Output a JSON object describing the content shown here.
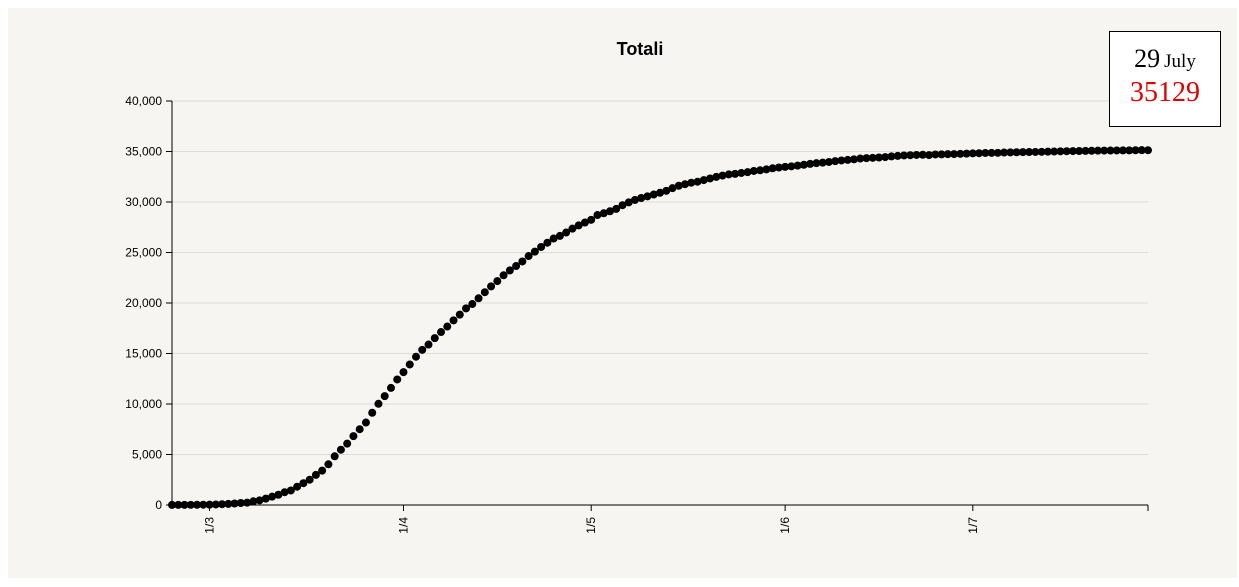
{
  "colors": {
    "background": "#f7f5f1",
    "marker": "#000000",
    "grid": "#dcdcdc",
    "axis": "#000000",
    "annotation_value": "#e00000"
  },
  "annotation": {
    "day": "29",
    "month": "July",
    "value": "35129"
  },
  "chart_data": {
    "type": "scatter",
    "title": "Totali",
    "xlabel": "",
    "ylabel": "",
    "x_range": [
      "2020-02-24",
      "2020-07-29"
    ],
    "x_ticks": [
      {
        "date": "2020-03-01",
        "label": "1/3"
      },
      {
        "date": "2020-04-01",
        "label": "1/4"
      },
      {
        "date": "2020-05-01",
        "label": "1/5"
      },
      {
        "date": "2020-06-01",
        "label": "1/6"
      },
      {
        "date": "2020-07-01",
        "label": "1/7"
      }
    ],
    "ylim": [
      0,
      40000
    ],
    "y_ticks": [
      {
        "value": 0,
        "label": "0"
      },
      {
        "value": 5000,
        "label": "5,000"
      },
      {
        "value": 10000,
        "label": "10,000"
      },
      {
        "value": 15000,
        "label": "15,000"
      },
      {
        "value": 20000,
        "label": "20,000"
      },
      {
        "value": 25000,
        "label": "25,000"
      },
      {
        "value": 30000,
        "label": "30,000"
      },
      {
        "value": 35000,
        "label": "35,000"
      },
      {
        "value": 40000,
        "label": "40,000"
      }
    ],
    "grid": true,
    "legend": "none",
    "series": [
      {
        "points": [
          [
            "2020-02-24",
            7
          ],
          [
            "2020-02-25",
            10
          ],
          [
            "2020-02-26",
            12
          ],
          [
            "2020-02-27",
            17
          ],
          [
            "2020-02-28",
            21
          ],
          [
            "2020-02-29",
            29
          ],
          [
            "2020-03-01",
            34
          ],
          [
            "2020-03-02",
            52
          ],
          [
            "2020-03-03",
            79
          ],
          [
            "2020-03-04",
            107
          ],
          [
            "2020-03-05",
            148
          ],
          [
            "2020-03-06",
            197
          ],
          [
            "2020-03-07",
            233
          ],
          [
            "2020-03-08",
            366
          ],
          [
            "2020-03-09",
            463
          ],
          [
            "2020-03-10",
            631
          ],
          [
            "2020-03-11",
            827
          ],
          [
            "2020-03-12",
            1016
          ],
          [
            "2020-03-13",
            1266
          ],
          [
            "2020-03-14",
            1441
          ],
          [
            "2020-03-15",
            1809
          ],
          [
            "2020-03-16",
            2158
          ],
          [
            "2020-03-17",
            2503
          ],
          [
            "2020-03-18",
            2978
          ],
          [
            "2020-03-19",
            3405
          ],
          [
            "2020-03-20",
            4032
          ],
          [
            "2020-03-21",
            4825
          ],
          [
            "2020-03-22",
            5476
          ],
          [
            "2020-03-23",
            6077
          ],
          [
            "2020-03-24",
            6820
          ],
          [
            "2020-03-25",
            7503
          ],
          [
            "2020-03-26",
            8165
          ],
          [
            "2020-03-27",
            9134
          ],
          [
            "2020-03-28",
            10023
          ],
          [
            "2020-03-29",
            10779
          ],
          [
            "2020-03-30",
            11591
          ],
          [
            "2020-03-31",
            12428
          ],
          [
            "2020-04-01",
            13155
          ],
          [
            "2020-04-02",
            13915
          ],
          [
            "2020-04-03",
            14681
          ],
          [
            "2020-04-04",
            15362
          ],
          [
            "2020-04-05",
            15887
          ],
          [
            "2020-04-06",
            16523
          ],
          [
            "2020-04-07",
            17127
          ],
          [
            "2020-04-08",
            17669
          ],
          [
            "2020-04-09",
            18279
          ],
          [
            "2020-04-10",
            18849
          ],
          [
            "2020-04-11",
            19468
          ],
          [
            "2020-04-12",
            19899
          ],
          [
            "2020-04-13",
            20465
          ],
          [
            "2020-04-14",
            21067
          ],
          [
            "2020-04-15",
            21645
          ],
          [
            "2020-04-16",
            22170
          ],
          [
            "2020-04-17",
            22745
          ],
          [
            "2020-04-18",
            23227
          ],
          [
            "2020-04-19",
            23660
          ],
          [
            "2020-04-20",
            24114
          ],
          [
            "2020-04-21",
            24648
          ],
          [
            "2020-04-22",
            25085
          ],
          [
            "2020-04-23",
            25549
          ],
          [
            "2020-04-24",
            25969
          ],
          [
            "2020-04-25",
            26384
          ],
          [
            "2020-04-26",
            26644
          ],
          [
            "2020-04-27",
            26977
          ],
          [
            "2020-04-28",
            27359
          ],
          [
            "2020-04-29",
            27682
          ],
          [
            "2020-04-30",
            27967
          ],
          [
            "2020-05-01",
            28236
          ],
          [
            "2020-05-02",
            28710
          ],
          [
            "2020-05-03",
            28884
          ],
          [
            "2020-05-04",
            29079
          ],
          [
            "2020-05-05",
            29315
          ],
          [
            "2020-05-06",
            29684
          ],
          [
            "2020-05-07",
            29958
          ],
          [
            "2020-05-08",
            30201
          ],
          [
            "2020-05-09",
            30395
          ],
          [
            "2020-05-10",
            30560
          ],
          [
            "2020-05-11",
            30739
          ],
          [
            "2020-05-12",
            30911
          ],
          [
            "2020-05-13",
            31106
          ],
          [
            "2020-05-14",
            31368
          ],
          [
            "2020-05-15",
            31610
          ],
          [
            "2020-05-16",
            31763
          ],
          [
            "2020-05-17",
            31908
          ],
          [
            "2020-05-18",
            32007
          ],
          [
            "2020-05-19",
            32169
          ],
          [
            "2020-05-20",
            32330
          ],
          [
            "2020-05-21",
            32486
          ],
          [
            "2020-05-22",
            32616
          ],
          [
            "2020-05-23",
            32735
          ],
          [
            "2020-05-24",
            32785
          ],
          [
            "2020-05-25",
            32877
          ],
          [
            "2020-05-26",
            32955
          ],
          [
            "2020-05-27",
            33072
          ],
          [
            "2020-05-28",
            33142
          ],
          [
            "2020-05-29",
            33229
          ],
          [
            "2020-05-30",
            33340
          ],
          [
            "2020-05-31",
            33415
          ],
          [
            "2020-06-01",
            33475
          ],
          [
            "2020-06-02",
            33530
          ],
          [
            "2020-06-03",
            33601
          ],
          [
            "2020-06-04",
            33689
          ],
          [
            "2020-06-05",
            33774
          ],
          [
            "2020-06-06",
            33846
          ],
          [
            "2020-06-07",
            33899
          ],
          [
            "2020-06-08",
            33964
          ],
          [
            "2020-06-09",
            34043
          ],
          [
            "2020-06-10",
            34114
          ],
          [
            "2020-06-11",
            34167
          ],
          [
            "2020-06-12",
            34223
          ],
          [
            "2020-06-13",
            34301
          ],
          [
            "2020-06-14",
            34345
          ],
          [
            "2020-06-15",
            34371
          ],
          [
            "2020-06-16",
            34405
          ],
          [
            "2020-06-17",
            34448
          ],
          [
            "2020-06-18",
            34514
          ],
          [
            "2020-06-19",
            34561
          ],
          [
            "2020-06-20",
            34610
          ],
          [
            "2020-06-21",
            34634
          ],
          [
            "2020-06-22",
            34657
          ],
          [
            "2020-06-23",
            34675
          ],
          [
            "2020-06-24",
            34644
          ],
          [
            "2020-06-25",
            34708
          ],
          [
            "2020-06-26",
            34716
          ],
          [
            "2020-06-27",
            34738
          ],
          [
            "2020-06-28",
            34744
          ],
          [
            "2020-06-29",
            34767
          ],
          [
            "2020-06-30",
            34788
          ],
          [
            "2020-07-01",
            34818
          ],
          [
            "2020-07-02",
            34833
          ],
          [
            "2020-07-03",
            34854
          ],
          [
            "2020-07-04",
            34861
          ],
          [
            "2020-07-05",
            34869
          ],
          [
            "2020-07-06",
            34899
          ],
          [
            "2020-07-07",
            34914
          ],
          [
            "2020-07-08",
            34926
          ],
          [
            "2020-07-09",
            34938
          ],
          [
            "2020-07-10",
            34945
          ],
          [
            "2020-07-11",
            34954
          ],
          [
            "2020-07-12",
            34967
          ],
          [
            "2020-07-13",
            34984
          ],
          [
            "2020-07-14",
            34997
          ],
          [
            "2020-07-15",
            35017
          ],
          [
            "2020-07-16",
            35028
          ],
          [
            "2020-07-17",
            35042
          ],
          [
            "2020-07-18",
            35045
          ],
          [
            "2020-07-19",
            35058
          ],
          [
            "2020-07-20",
            35073
          ],
          [
            "2020-07-21",
            35082
          ],
          [
            "2020-07-22",
            35092
          ],
          [
            "2020-07-23",
            35097
          ],
          [
            "2020-07-24",
            35102
          ],
          [
            "2020-07-25",
            35107
          ],
          [
            "2020-07-26",
            35112
          ],
          [
            "2020-07-27",
            35123
          ],
          [
            "2020-07-28",
            35132
          ],
          [
            "2020-07-29",
            35129
          ]
        ]
      }
    ]
  }
}
